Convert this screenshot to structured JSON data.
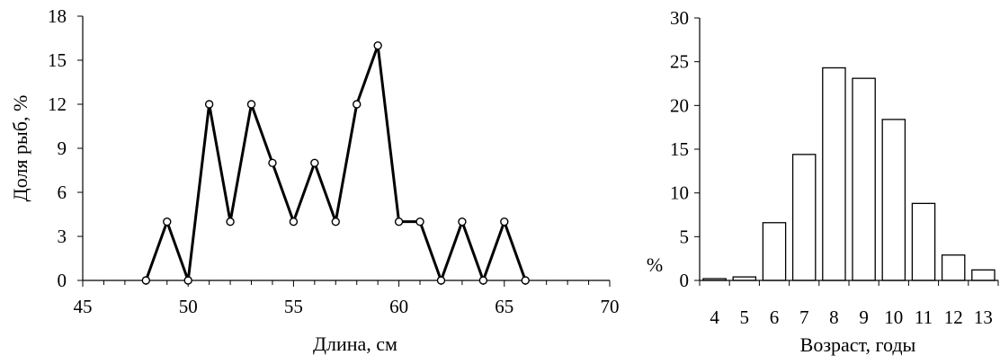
{
  "chart_data": [
    {
      "type": "line",
      "title": "",
      "xlabel": "Длина, см",
      "ylabel": "Доля рыб, %",
      "xlim": [
        45,
        70
      ],
      "ylim": [
        0,
        18
      ],
      "xticks": [
        "45",
        "50",
        "55",
        "60",
        "65",
        "70"
      ],
      "yticks": [
        "0",
        "3",
        "6",
        "9",
        "12",
        "15",
        "18"
      ],
      "grid": false,
      "legend": "none",
      "line_color": "#000000",
      "marker": "open-circle",
      "x": [
        48,
        49,
        50,
        51,
        52,
        53,
        54,
        55,
        56,
        57,
        58,
        59,
        60,
        61,
        62,
        63,
        64,
        65,
        66
      ],
      "y": [
        0,
        4,
        0,
        12,
        4,
        12,
        8,
        4,
        8,
        4,
        12,
        16,
        4,
        4,
        0,
        4,
        0,
        4,
        0
      ]
    },
    {
      "type": "bar",
      "title": "",
      "xlabel": "Возраст, годы",
      "ylabel": "%",
      "ylim": [
        0,
        30
      ],
      "yticks": [
        "0",
        "5",
        "10",
        "15",
        "20",
        "25",
        "30"
      ],
      "grid": false,
      "legend": "none",
      "bar_fill": "#ffffff",
      "bar_stroke": "#000000",
      "categories": [
        "4",
        "5",
        "6",
        "7",
        "8",
        "9",
        "10",
        "11",
        "12",
        "13"
      ],
      "values": [
        0.2,
        0.4,
        6.6,
        14.4,
        24.3,
        23.1,
        18.4,
        8.8,
        2.9,
        1.2
      ]
    }
  ]
}
